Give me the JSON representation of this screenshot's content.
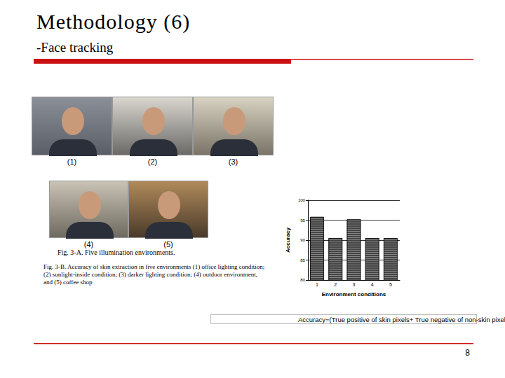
{
  "slide": {
    "title": "Methodology (6)",
    "subtitle": "-Face tracking",
    "photo_labels": [
      "(1)",
      "(2)",
      "(3)",
      "(4)",
      "(5)"
    ],
    "caption_a": "Fig. 3-A.  Five illumination environments.",
    "caption_b": "Fig. 3-B.  Accuracy of skin extraction in five environments (1) office lighting condition;  (2) sunlight-inside condition;  (3) darker lighting condition; (4) outdoor environment, and (5) coffee shop",
    "formula": "Accuracy=(True positive of skin pixels+ True negative of non-skin pixels)/ Total pixels",
    "page_number": "8"
  },
  "chart_data": {
    "type": "bar",
    "x_label": "Environment conditions",
    "y_label": "Accuracy",
    "categories": [
      "1",
      "2",
      "3",
      "4",
      "5"
    ],
    "values": [
      95.8,
      90.5,
      95.2,
      90.5,
      90.5
    ],
    "color": "#444444",
    "ylim": [
      80,
      100
    ],
    "yticks": [
      80,
      85,
      90,
      95,
      100
    ],
    "grid": true
  }
}
